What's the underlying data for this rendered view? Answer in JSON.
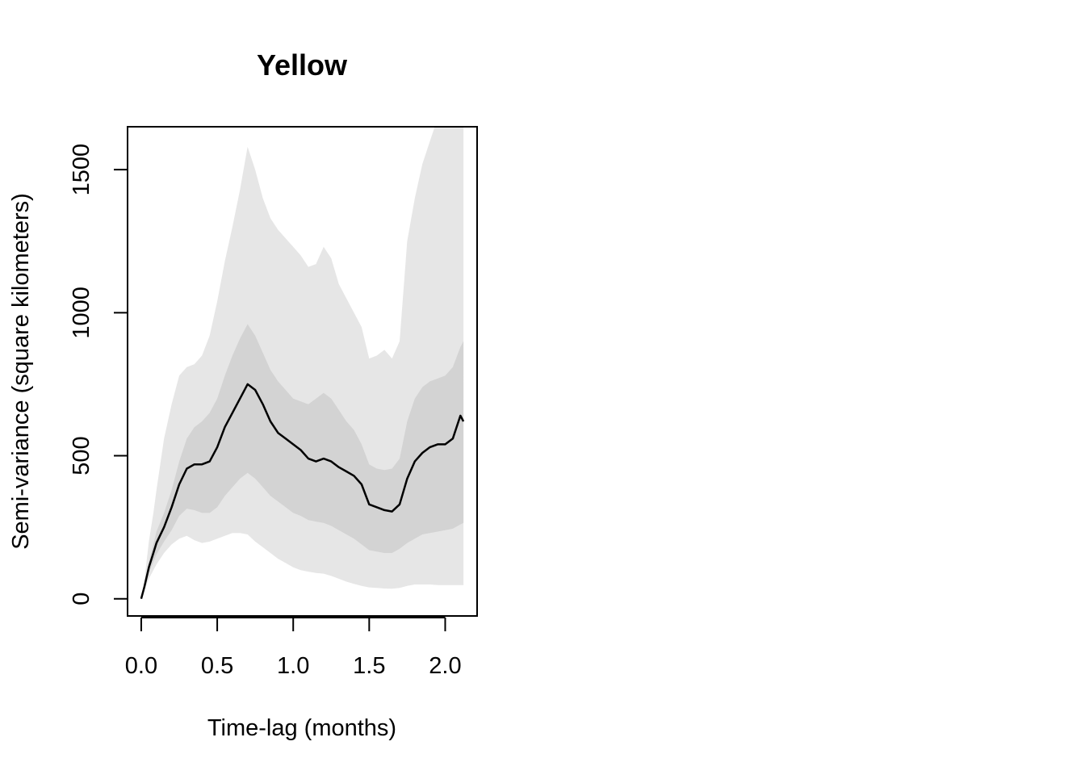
{
  "chart_data": {
    "type": "line",
    "title": "Yellow",
    "xlabel": "Time-lag (months)",
    "ylabel": "Semi-variance (square kilometers)",
    "xlim": [
      -0.09,
      2.21
    ],
    "ylim": [
      -60,
      1650
    ],
    "x_ticks": [
      0.0,
      0.5,
      1.0,
      1.5,
      2.0
    ],
    "x_tick_labels": [
      "0.0",
      "0.5",
      "1.0",
      "1.5",
      "2.0"
    ],
    "y_ticks": [
      0,
      500,
      1000,
      1500
    ],
    "y_tick_labels": [
      "0",
      "500",
      "1000",
      "1500"
    ],
    "grid": false,
    "legend": "none",
    "colors": {
      "line": "#000000",
      "inner_band": "#d3d3d3",
      "outer_band": "#e6e6e6"
    },
    "series": [
      {
        "x": [
          0.0,
          0.02,
          0.05,
          0.08,
          0.1,
          0.15,
          0.2,
          0.25,
          0.3,
          0.35,
          0.4,
          0.45,
          0.5,
          0.55,
          0.6,
          0.65,
          0.7,
          0.75,
          0.8,
          0.85,
          0.9,
          0.95,
          1.0,
          1.05,
          1.1,
          1.15,
          1.2,
          1.25,
          1.3,
          1.35,
          1.4,
          1.45,
          1.5,
          1.55,
          1.6,
          1.65,
          1.7,
          1.75,
          1.8,
          1.85,
          1.9,
          1.95,
          2.0,
          2.05,
          2.1,
          2.12
        ],
        "values": [
          0,
          40,
          110,
          160,
          195,
          250,
          320,
          400,
          455,
          470,
          470,
          480,
          530,
          600,
          650,
          700,
          750,
          730,
          680,
          620,
          580,
          560,
          540,
          520,
          490,
          480,
          490,
          480,
          460,
          445,
          430,
          400,
          330,
          320,
          310,
          305,
          330,
          420,
          480,
          510,
          530,
          540,
          540,
          560,
          640,
          620
        ],
        "inner_lower": [
          0,
          35,
          90,
          130,
          155,
          200,
          240,
          290,
          315,
          310,
          300,
          300,
          320,
          360,
          390,
          420,
          440,
          420,
          390,
          360,
          340,
          320,
          300,
          290,
          275,
          270,
          265,
          255,
          240,
          225,
          210,
          190,
          170,
          165,
          160,
          160,
          175,
          195,
          210,
          225,
          230,
          235,
          240,
          245,
          260,
          265
        ],
        "inner_upper": [
          0,
          45,
          130,
          190,
          235,
          300,
          380,
          480,
          560,
          600,
          620,
          650,
          700,
          780,
          850,
          910,
          960,
          920,
          860,
          800,
          760,
          730,
          700,
          690,
          680,
          700,
          720,
          700,
          660,
          620,
          590,
          540,
          470,
          455,
          450,
          455,
          490,
          620,
          700,
          740,
          760,
          770,
          780,
          810,
          880,
          900
        ],
        "outer_lower": [
          0,
          30,
          70,
          100,
          120,
          160,
          190,
          210,
          220,
          205,
          195,
          200,
          210,
          220,
          230,
          230,
          225,
          200,
          180,
          160,
          140,
          125,
          110,
          100,
          95,
          90,
          88,
          80,
          70,
          60,
          52,
          45,
          40,
          38,
          36,
          35,
          38,
          45,
          50,
          50,
          50,
          48,
          48,
          48,
          48,
          48
        ],
        "outer_upper": [
          0,
          60,
          200,
          300,
          380,
          560,
          680,
          780,
          810,
          820,
          850,
          920,
          1040,
          1180,
          1300,
          1430,
          1580,
          1500,
          1400,
          1330,
          1290,
          1260,
          1230,
          1200,
          1160,
          1170,
          1230,
          1190,
          1100,
          1050,
          1000,
          950,
          840,
          850,
          870,
          840,
          900,
          1250,
          1400,
          1520,
          1600,
          1680,
          1750,
          1800,
          1900,
          1950
        ]
      }
    ]
  }
}
